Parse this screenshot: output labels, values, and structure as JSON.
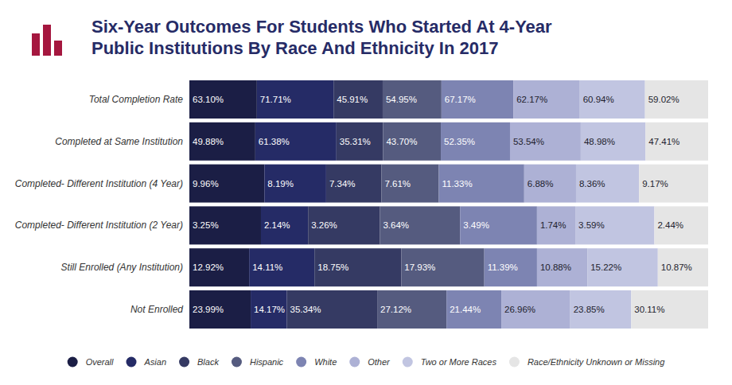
{
  "chart_data": {
    "type": "bar",
    "title": "Six-Year Outcomes For Students Who Started At 4-Year Public Institutions By Race And Ethnicity In 2017",
    "orientation": "horizontal",
    "stacked": true,
    "data_labels": true,
    "tick_labels": "y",
    "grid": false,
    "legend": "bottom",
    "categories": [
      "Total Completion Rate",
      "Completed at Same Institution",
      "Completed- Different Institution (4 Year)",
      "Completed- Different Institution (2 Year)",
      "Still Enrolled (Any Institution)",
      "Not Enrolled"
    ],
    "series": [
      {
        "name": "Overall",
        "color": "#1b1e45",
        "values": [
          63.1,
          49.88,
          9.96,
          3.25,
          12.92,
          23.99
        ],
        "value_labels": [
          "63.10%",
          "49.88%",
          "9.96%",
          "3.25%",
          "12.92%",
          "23.99%"
        ]
      },
      {
        "name": "Asian",
        "color": "#252b66",
        "values": [
          71.71,
          61.38,
          8.19,
          2.14,
          14.11,
          14.17
        ],
        "value_labels": [
          "71.71%",
          "61.38%",
          "8.19%",
          "2.14%",
          "14.11%",
          "14.17%"
        ]
      },
      {
        "name": "Black",
        "color": "#353a63",
        "values": [
          45.91,
          35.31,
          7.34,
          3.26,
          18.75,
          35.34
        ],
        "value_labels": [
          "45.91%",
          "35.31%",
          "7.34%",
          "3.26%",
          "18.75%",
          "35.34%"
        ]
      },
      {
        "name": "Hispanic",
        "color": "#555b7f",
        "values": [
          54.95,
          43.7,
          7.61,
          3.64,
          17.93,
          27.12
        ],
        "value_labels": [
          "54.95%",
          "43.70%",
          "7.61%",
          "3.64%",
          "17.93%",
          "27.12%"
        ]
      },
      {
        "name": "White",
        "color": "#7d84b2",
        "values": [
          67.17,
          52.35,
          11.33,
          3.49,
          11.39,
          21.44
        ],
        "value_labels": [
          "67.17%",
          "52.35%",
          "11.33%",
          "3.49%",
          "11.39%",
          "21.44%"
        ]
      },
      {
        "name": "Other",
        "color": "#adb1d5",
        "values": [
          62.17,
          53.54,
          6.88,
          1.74,
          10.88,
          26.96
        ],
        "value_labels": [
          "62.17%",
          "53.54%",
          "6.88%",
          "1.74%",
          "10.88%",
          "26.96%"
        ]
      },
      {
        "name": "Two or More Races",
        "color": "#c1c5e1",
        "values": [
          60.94,
          48.98,
          8.36,
          3.59,
          15.22,
          23.85
        ],
        "value_labels": [
          "60.94%",
          "48.98%",
          "8.36%",
          "3.59%",
          "15.22%",
          "23.85%"
        ]
      },
      {
        "name": "Race/Ethnicity Unknown or Missing",
        "color": "#e5e5e5",
        "values": [
          59.02,
          47.41,
          9.17,
          2.44,
          10.87,
          30.11
        ],
        "value_labels": [
          "59.02%",
          "47.41%",
          "9.17%",
          "2.44%",
          "10.87%",
          "30.11%"
        ]
      }
    ]
  }
}
